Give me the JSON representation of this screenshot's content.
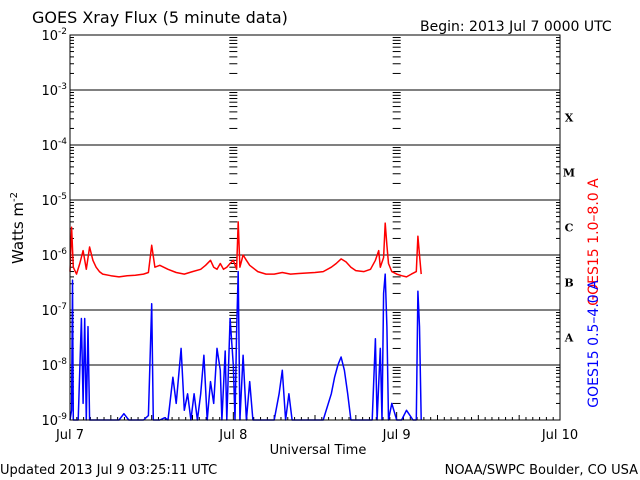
{
  "chart_data": {
    "type": "line",
    "title": "GOES Xray Flux (5 minute data)",
    "begin_label": "Begin:  2013 Jul 7 0000 UTC",
    "xlabel": "Universal Time",
    "ylabel_main": "Watts m",
    "ylabel_sup": "-2",
    "updated_label": "Updated 2013 Jul  9 03:25:11 UTC",
    "credit_label": "NOAA/SWPC Boulder, CO USA",
    "y_scale": "log",
    "ylim_exponent": [
      -9,
      -2
    ],
    "y_ticks": [
      {
        "base": "10",
        "exp": "-9",
        "value": 1e-09
      },
      {
        "base": "10",
        "exp": "-8",
        "value": 1e-08
      },
      {
        "base": "10",
        "exp": "-7",
        "value": 1e-07
      },
      {
        "base": "10",
        "exp": "-6",
        "value": 1e-06
      },
      {
        "base": "10",
        "exp": "-5",
        "value": 1e-05
      },
      {
        "base": "10",
        "exp": "-4",
        "value": 0.0001
      },
      {
        "base": "10",
        "exp": "-3",
        "value": 0.001
      },
      {
        "base": "10",
        "exp": "-2",
        "value": 0.01
      }
    ],
    "x_unit": "days",
    "xlim": [
      0,
      3
    ],
    "x_ticks": [
      {
        "label": "Jul 7",
        "day": 0
      },
      {
        "label": "Jul 8",
        "day": 1
      },
      {
        "label": "Jul 9",
        "day": 2
      },
      {
        "label": "Jul 10",
        "day": 3
      }
    ],
    "flare_classes": [
      {
        "label": "X",
        "value": 0.0001
      },
      {
        "label": "M",
        "value": 1e-05
      },
      {
        "label": "C",
        "value": 1e-06
      },
      {
        "label": "B",
        "value": 1e-07
      },
      {
        "label": "A",
        "value": 1e-08
      }
    ],
    "grid": "horizontal",
    "legend": "right-vertical",
    "series": [
      {
        "name": "GOES15 1.0–8.0 A",
        "color": "#ff0000",
        "points": [
          [
            0.0,
            5e-07
          ],
          [
            0.01,
            3.2e-06
          ],
          [
            0.02,
            6e-07
          ],
          [
            0.04,
            4.5e-07
          ],
          [
            0.06,
            7e-07
          ],
          [
            0.08,
            1.2e-06
          ],
          [
            0.1,
            5.5e-07
          ],
          [
            0.12,
            1.4e-06
          ],
          [
            0.14,
            8e-07
          ],
          [
            0.16,
            6e-07
          ],
          [
            0.18,
            5e-07
          ],
          [
            0.2,
            4.5e-07
          ],
          [
            0.25,
            4.2e-07
          ],
          [
            0.3,
            4e-07
          ],
          [
            0.35,
            4.2e-07
          ],
          [
            0.4,
            4.3e-07
          ],
          [
            0.45,
            4.5e-07
          ],
          [
            0.48,
            4.8e-07
          ],
          [
            0.5,
            1.5e-06
          ],
          [
            0.52,
            6e-07
          ],
          [
            0.55,
            6.5e-07
          ],
          [
            0.6,
            5.5e-07
          ],
          [
            0.65,
            4.8e-07
          ],
          [
            0.7,
            4.5e-07
          ],
          [
            0.75,
            5e-07
          ],
          [
            0.8,
            5.5e-07
          ],
          [
            0.83,
            6.5e-07
          ],
          [
            0.86,
            8e-07
          ],
          [
            0.88,
            6e-07
          ],
          [
            0.9,
            5.5e-07
          ],
          [
            0.92,
            7e-07
          ],
          [
            0.94,
            5.5e-07
          ],
          [
            0.96,
            6e-07
          ],
          [
            0.98,
            7e-07
          ],
          [
            1.0,
            8e-07
          ],
          [
            1.02,
            5.5e-07
          ],
          [
            1.03,
            4e-06
          ],
          [
            1.04,
            6e-07
          ],
          [
            1.06,
            1e-06
          ],
          [
            1.08,
            8e-07
          ],
          [
            1.1,
            6.5e-07
          ],
          [
            1.15,
            5e-07
          ],
          [
            1.2,
            4.5e-07
          ],
          [
            1.25,
            4.5e-07
          ],
          [
            1.3,
            4.8e-07
          ],
          [
            1.35,
            4.5e-07
          ],
          [
            1.4,
            4.6e-07
          ],
          [
            1.45,
            4.7e-07
          ],
          [
            1.5,
            4.8e-07
          ],
          [
            1.55,
            5e-07
          ],
          [
            1.6,
            6e-07
          ],
          [
            1.63,
            7e-07
          ],
          [
            1.66,
            8.5e-07
          ],
          [
            1.69,
            7.5e-07
          ],
          [
            1.72,
            6e-07
          ],
          [
            1.75,
            5.2e-07
          ],
          [
            1.8,
            5e-07
          ],
          [
            1.84,
            5.5e-07
          ],
          [
            1.87,
            8e-07
          ],
          [
            1.89,
            1.2e-06
          ],
          [
            1.9,
            6e-07
          ],
          [
            1.92,
            9e-07
          ],
          [
            1.93,
            3.8e-06
          ],
          [
            1.94,
            1.5e-06
          ],
          [
            1.95,
            7e-07
          ],
          [
            1.97,
            5e-07
          ],
          [
            2.0,
            4.5e-07
          ],
          [
            2.03,
            4.2e-07
          ],
          [
            2.06,
            4e-07
          ],
          [
            2.09,
            4.5e-07
          ],
          [
            2.12,
            5e-07
          ],
          [
            2.13,
            2.2e-06
          ],
          [
            2.14,
            1e-06
          ],
          [
            2.15,
            4.5e-07
          ]
        ]
      },
      {
        "name": "GOES15 0.5–4.0 A",
        "color": "#0000ff",
        "points": [
          [
            0.0,
            1e-09
          ],
          [
            0.01,
            1.5e-09
          ],
          [
            0.015,
            3.5e-07
          ],
          [
            0.02,
            1e-09
          ],
          [
            0.05,
            1e-09
          ],
          [
            0.07,
            7e-08
          ],
          [
            0.08,
            2e-09
          ],
          [
            0.09,
            7e-08
          ],
          [
            0.1,
            1e-09
          ],
          [
            0.11,
            5e-08
          ],
          [
            0.12,
            1e-09
          ],
          [
            0.15,
            1e-09
          ],
          [
            0.3,
            1e-09
          ],
          [
            0.33,
            1.3e-09
          ],
          [
            0.36,
            1e-09
          ],
          [
            0.4,
            1e-09
          ],
          [
            0.45,
            1e-09
          ],
          [
            0.48,
            1.2e-09
          ],
          [
            0.5,
            1.3e-07
          ],
          [
            0.51,
            1e-09
          ],
          [
            0.55,
            1e-09
          ],
          [
            0.58,
            1.1e-09
          ],
          [
            0.6,
            1e-09
          ],
          [
            0.63,
            6e-09
          ],
          [
            0.65,
            2e-09
          ],
          [
            0.68,
            2e-08
          ],
          [
            0.7,
            1.5e-09
          ],
          [
            0.72,
            3e-09
          ],
          [
            0.74,
            1e-09
          ],
          [
            0.76,
            3e-09
          ],
          [
            0.78,
            1e-09
          ],
          [
            0.8,
            3e-09
          ],
          [
            0.82,
            1.5e-08
          ],
          [
            0.84,
            1e-09
          ],
          [
            0.86,
            5e-09
          ],
          [
            0.88,
            2e-09
          ],
          [
            0.9,
            2e-08
          ],
          [
            0.92,
            8e-09
          ],
          [
            0.93,
            1e-09
          ],
          [
            0.95,
            1.8e-08
          ],
          [
            0.96,
            1e-09
          ],
          [
            0.98,
            7e-08
          ],
          [
            1.0,
            1e-08
          ],
          [
            1.01,
            1e-09
          ],
          [
            1.02,
            4e-08
          ],
          [
            1.03,
            5e-07
          ],
          [
            1.04,
            1e-09
          ],
          [
            1.06,
            1.5e-08
          ],
          [
            1.08,
            1e-09
          ],
          [
            1.1,
            5e-09
          ],
          [
            1.12,
            1e-09
          ],
          [
            1.2,
            1e-09
          ],
          [
            1.25,
            1e-09
          ],
          [
            1.28,
            3e-09
          ],
          [
            1.3,
            8e-09
          ],
          [
            1.32,
            1e-09
          ],
          [
            1.34,
            3e-09
          ],
          [
            1.36,
            1e-09
          ],
          [
            1.45,
            1e-09
          ],
          [
            1.55,
            1e-09
          ],
          [
            1.6,
            3e-09
          ],
          [
            1.62,
            6e-09
          ],
          [
            1.64,
            1e-08
          ],
          [
            1.66,
            1.4e-08
          ],
          [
            1.68,
            8e-09
          ],
          [
            1.7,
            3e-09
          ],
          [
            1.72,
            1e-09
          ],
          [
            1.8,
            1e-09
          ],
          [
            1.85,
            1e-09
          ],
          [
            1.87,
            3e-08
          ],
          [
            1.88,
            1e-09
          ],
          [
            1.9,
            2e-08
          ],
          [
            1.91,
            1e-09
          ],
          [
            1.92,
            2e-07
          ],
          [
            1.93,
            4.5e-07
          ],
          [
            1.94,
            5e-08
          ],
          [
            1.95,
            1e-09
          ],
          [
            1.97,
            2e-09
          ],
          [
            2.0,
            1e-09
          ],
          [
            2.03,
            1e-09
          ],
          [
            2.06,
            1.5e-09
          ],
          [
            2.1,
            1e-09
          ],
          [
            2.12,
            1e-09
          ],
          [
            2.13,
            2.2e-07
          ],
          [
            2.14,
            5e-08
          ],
          [
            2.15,
            1e-09
          ]
        ]
      }
    ]
  }
}
